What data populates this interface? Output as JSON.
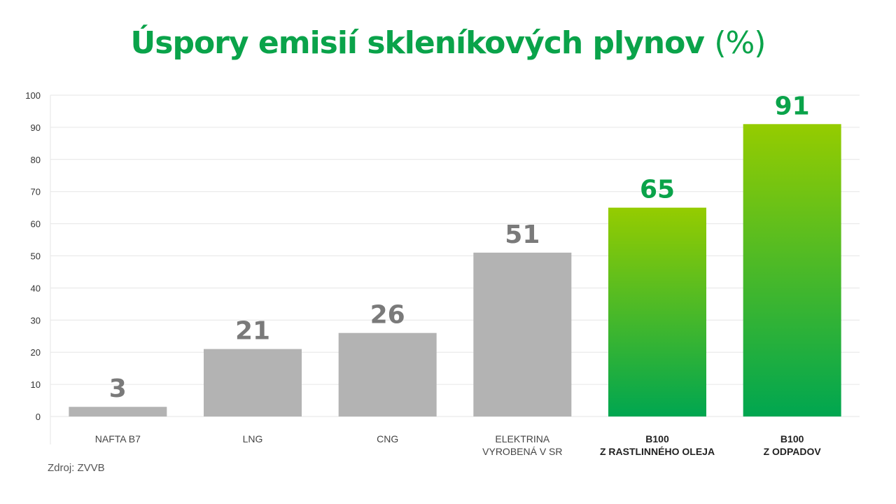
{
  "title_main": "Úspory emisií skleníkových plynov",
  "title_unit": "(%)",
  "source": "Zdroj: ZVVB",
  "colors": {
    "title": "#0aa34a",
    "gray_bar": "#b3b3b3",
    "gray_label": "#7a7a7a",
    "green_top": "#95cc00",
    "green_bottom": "#00a650",
    "green_label": "#0aa34a",
    "grid": "#e6e6e6"
  },
  "chart_data": {
    "type": "bar",
    "categories": [
      [
        "NAFTA B7"
      ],
      [
        "LNG"
      ],
      [
        "CNG"
      ],
      [
        "ELEKTRINA",
        "VYROBENÁ V SR"
      ],
      [
        "B100",
        "Z RASTLINNÉHO OLEJA"
      ],
      [
        "B100",
        "Z ODPADOV"
      ]
    ],
    "values": [
      3,
      21,
      26,
      51,
      65,
      91
    ],
    "highlight": [
      false,
      false,
      false,
      false,
      true,
      true
    ],
    "title": "Úspory emisií skleníkových plynov (%)",
    "xlabel": "",
    "ylabel": "",
    "ylim": [
      0,
      100
    ],
    "yticks": [
      0,
      10,
      20,
      30,
      40,
      50,
      60,
      70,
      80,
      90,
      100
    ],
    "grid": true,
    "legend": "none"
  }
}
